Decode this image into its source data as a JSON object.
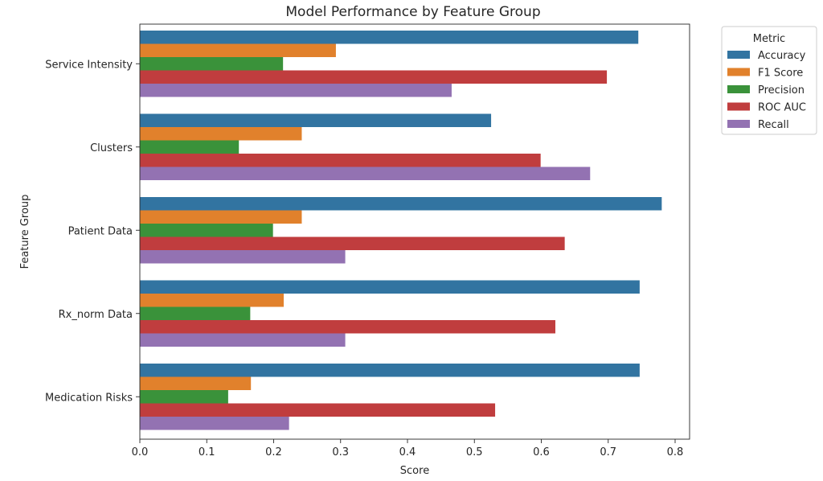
{
  "chart_data": {
    "type": "bar",
    "orientation": "horizontal",
    "title": "Model Performance by Feature Group",
    "xlabel": "Score",
    "ylabel": "Feature Group",
    "xlim": [
      0,
      0.82
    ],
    "xticks": [
      "0.0",
      "0.1",
      "0.2",
      "0.3",
      "0.4",
      "0.5",
      "0.6",
      "0.7",
      "0.8"
    ],
    "categories": [
      "Service Intensity",
      "Clusters",
      "Patient Data",
      "Rx_norm Data",
      "Medication Risks"
    ],
    "legend_title": "Metric",
    "legend_position": "outside-right-top",
    "grid": false,
    "series": [
      {
        "name": "Accuracy",
        "color": "#3274a1",
        "values": [
          0.745,
          0.525,
          0.78,
          0.747,
          0.747
        ]
      },
      {
        "name": "F1 Score",
        "color": "#e1812c",
        "values": [
          0.293,
          0.242,
          0.242,
          0.215,
          0.166
        ]
      },
      {
        "name": "Precision",
        "color": "#3a923a",
        "values": [
          0.214,
          0.148,
          0.199,
          0.165,
          0.132
        ]
      },
      {
        "name": "ROC AUC",
        "color": "#c03d3e",
        "values": [
          0.698,
          0.599,
          0.635,
          0.621,
          0.531
        ]
      },
      {
        "name": "Recall",
        "color": "#9372b2",
        "values": [
          0.466,
          0.673,
          0.307,
          0.307,
          0.223
        ]
      }
    ]
  }
}
